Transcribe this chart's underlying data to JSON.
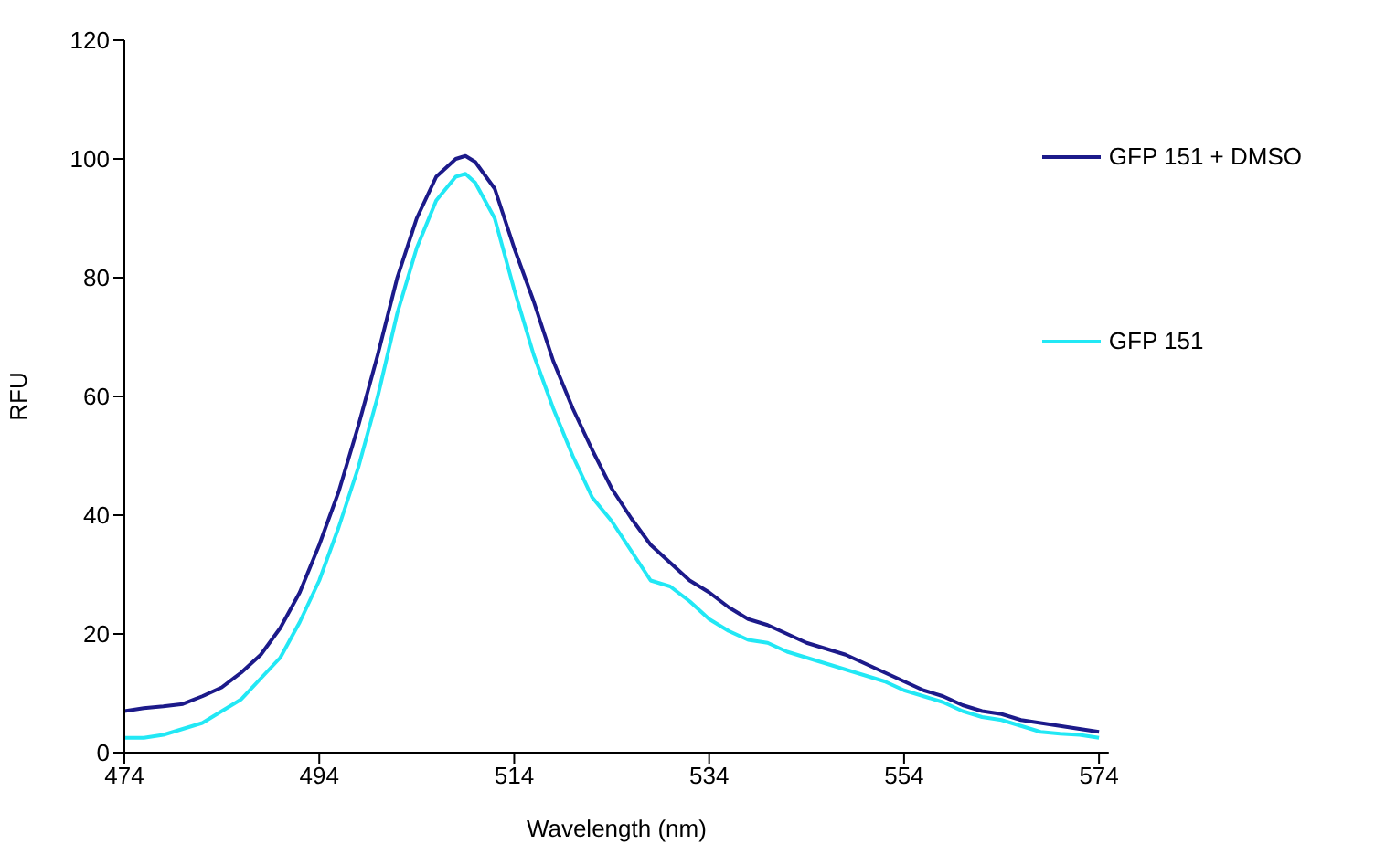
{
  "chart_data": {
    "type": "line",
    "xlabel": "Wavelength (nm)",
    "ylabel": "RFU",
    "x": [
      474,
      476,
      478,
      480,
      482,
      484,
      486,
      488,
      490,
      492,
      494,
      496,
      498,
      500,
      502,
      504,
      506,
      508,
      509,
      510,
      512,
      514,
      516,
      518,
      520,
      522,
      524,
      526,
      528,
      530,
      532,
      534,
      536,
      538,
      540,
      542,
      544,
      546,
      548,
      550,
      552,
      554,
      556,
      558,
      560,
      562,
      564,
      566,
      568,
      570,
      572,
      574
    ],
    "series": [
      {
        "name": "GFP 151 + DMSO",
        "color": "#1c1a8a",
        "values": [
          7,
          7.5,
          7.8,
          8.2,
          9.5,
          11,
          13.5,
          16.5,
          21,
          27,
          35,
          44,
          55,
          67,
          80,
          90,
          97,
          100,
          100.5,
          99.5,
          95,
          85,
          76,
          66,
          58,
          51,
          44.5,
          39.5,
          35,
          32,
          29,
          27,
          24.5,
          22.5,
          21.5,
          20,
          18.5,
          17.5,
          16.5,
          15,
          13.5,
          12,
          10.5,
          9.5,
          8,
          7,
          6.5,
          5.5,
          5,
          4.5,
          4,
          3.5
        ]
      },
      {
        "name": "GFP 151",
        "color": "#22e8f5",
        "values": [
          2.5,
          2.5,
          3,
          4,
          5,
          7,
          9,
          12.5,
          16,
          22,
          29,
          38,
          48,
          60,
          74,
          85,
          93,
          97,
          97.5,
          96,
          90,
          78,
          67,
          58,
          50,
          43,
          39,
          34,
          29,
          28,
          25.5,
          22.5,
          20.5,
          19,
          18.5,
          17,
          16,
          15,
          14,
          13,
          12,
          10.5,
          9.5,
          8.5,
          7,
          6,
          5.5,
          4.5,
          3.5,
          3.2,
          3,
          2.5
        ]
      }
    ],
    "xlim": [
      474,
      575
    ],
    "xticks": [
      474,
      494,
      514,
      534,
      554,
      574
    ],
    "ylim": [
      0,
      120
    ],
    "yticks": [
      0,
      20,
      40,
      60,
      80,
      100,
      120
    ],
    "grid": false,
    "legend": "right",
    "marker": "none",
    "line_style": "solid"
  }
}
